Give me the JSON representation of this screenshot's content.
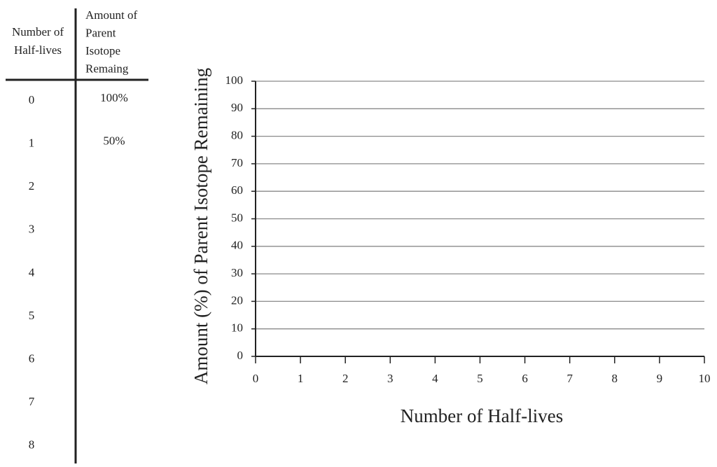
{
  "table": {
    "headers": [
      [
        "Number of",
        "Half-lives"
      ],
      [
        "Amount of",
        "Parent",
        "Isotope",
        "Remaing"
      ]
    ],
    "rows": [
      {
        "n": "0",
        "amount": "100%"
      },
      {
        "n": "1",
        "amount": "50%"
      },
      {
        "n": "2"
      },
      {
        "n": "3"
      },
      {
        "n": "4"
      },
      {
        "n": "5"
      },
      {
        "n": "6"
      },
      {
        "n": "7"
      },
      {
        "n": "8"
      }
    ]
  },
  "chart_data": {
    "type": "line",
    "xlabel": "Number of Half-lives",
    "ylabel": "Amount (%) of Parent Isotope Remaining",
    "xlim": [
      0,
      10
    ],
    "xticks": [
      0,
      1,
      2,
      3,
      4,
      5,
      6,
      7,
      8,
      9,
      10
    ],
    "ylim": [
      0,
      100
    ],
    "yticks": [
      0,
      10,
      20,
      30,
      40,
      50,
      60,
      70,
      80,
      90,
      100
    ],
    "grid": true
  }
}
